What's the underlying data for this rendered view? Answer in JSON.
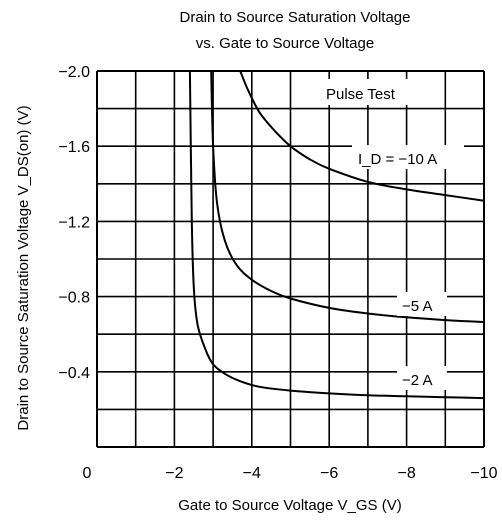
{
  "chart_data": {
    "type": "line",
    "title": "Drain to Source Saturation Voltage",
    "subtitle": "vs. Gate to Source Voltage",
    "xlabel": "Gate to Source Voltage  V_GS  (V)",
    "ylabel": "Drain to Source Saturation Voltage  V_DS(on)  (V)",
    "xlim": [
      0,
      -10
    ],
    "ylim": [
      0,
      -2.0
    ],
    "x_ticks": [
      "0",
      "−2",
      "−4",
      "−6",
      "−8",
      "−10"
    ],
    "y_ticks": [
      "−0.4",
      "−0.8",
      "−1.2",
      "−1.6",
      "−2.0"
    ],
    "grid": true,
    "annotations": [
      "Pulse Test"
    ],
    "series": [
      {
        "name": "I_D = −10 A",
        "x": [
          -3.7,
          -3.9,
          -4.2,
          -4.6,
          -5.0,
          -5.5,
          -6.0,
          -7.0,
          -8.0,
          -9.0,
          -10.0
        ],
        "y": [
          -2.0,
          -1.9,
          -1.78,
          -1.68,
          -1.6,
          -1.53,
          -1.48,
          -1.41,
          -1.37,
          -1.34,
          -1.31
        ]
      },
      {
        "name": "−5 A",
        "x": [
          -2.95,
          -3.0,
          -3.1,
          -3.3,
          -3.6,
          -4.0,
          -4.5,
          -5.0,
          -6.0,
          -7.0,
          -8.0,
          -9.0,
          -10.0
        ],
        "y": [
          -2.0,
          -1.6,
          -1.3,
          -1.1,
          -0.97,
          -0.89,
          -0.83,
          -0.79,
          -0.74,
          -0.71,
          -0.69,
          -0.675,
          -0.665
        ]
      },
      {
        "name": "−2 A",
        "x": [
          -2.4,
          -2.45,
          -2.5,
          -2.6,
          -2.8,
          -3.0,
          -3.3,
          -3.7,
          -4.2,
          -5.0,
          -6.0,
          -7.0,
          -8.0,
          -9.0,
          -10.0
        ],
        "y": [
          -2.0,
          -1.2,
          -0.85,
          -0.65,
          -0.52,
          -0.44,
          -0.39,
          -0.35,
          -0.32,
          -0.3,
          -0.285,
          -0.275,
          -0.27,
          -0.265,
          -0.26
        ]
      }
    ]
  }
}
